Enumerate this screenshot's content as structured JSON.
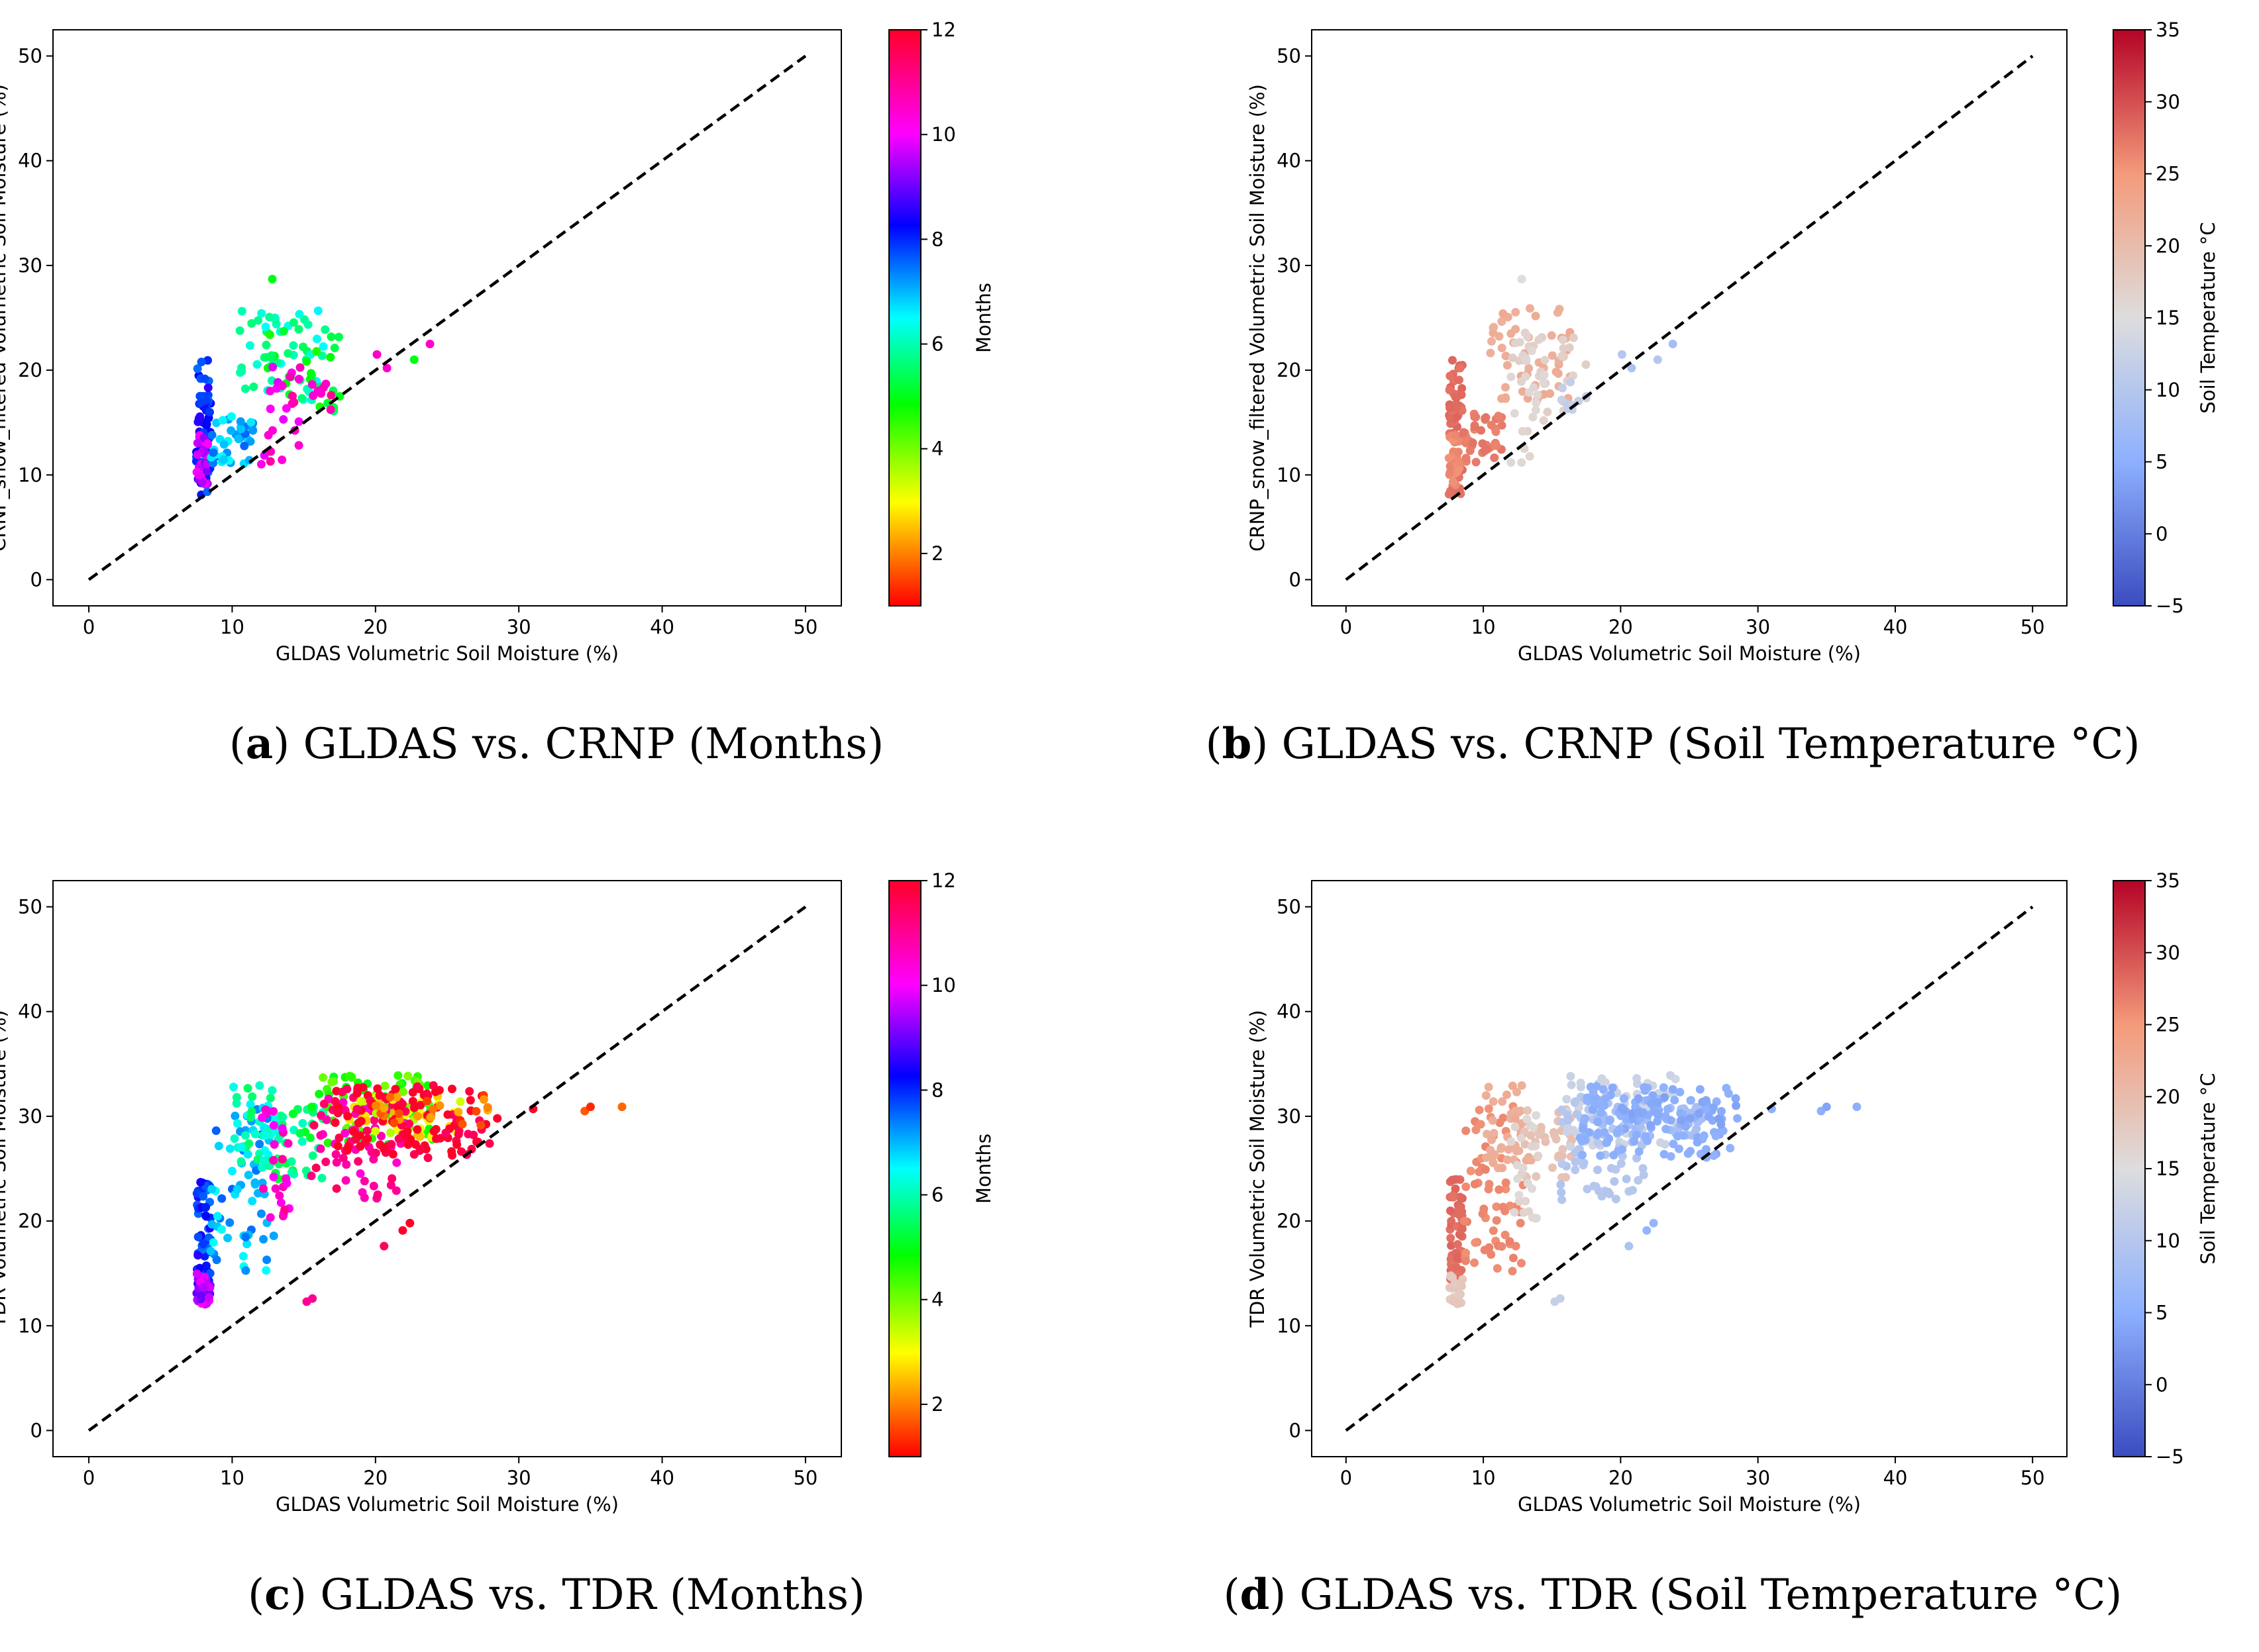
{
  "chart_data": [
    {
      "id": "a",
      "type": "scatter",
      "caption_letter": "a",
      "caption_text": "GLDAS vs. CRNP (Months)",
      "xlabel": "GLDAS Volumetric Soil Moisture (%)",
      "ylabel": "CRNP_snow_filtered Volumetric Soil Moisture (%)",
      "xlim": [
        -2.5,
        52.5
      ],
      "ylim": [
        -2.5,
        52.5
      ],
      "xticks": [
        0,
        10,
        20,
        30,
        40,
        50
      ],
      "yticks": [
        0,
        10,
        20,
        30,
        40,
        50
      ],
      "reference_line": {
        "style": "dashed",
        "color": "#000000",
        "from": [
          0,
          0
        ],
        "to": [
          50,
          50
        ]
      },
      "colorbar": {
        "label": "Months",
        "min": 1,
        "max": 12,
        "ticks": [
          2,
          4,
          6,
          8,
          10,
          12
        ],
        "colormap": "hsv-months"
      },
      "clusters": [
        {
          "color_value": 8,
          "x": [
            7.5,
            8.5
          ],
          "y": [
            8,
            21
          ],
          "n": 70
        },
        {
          "color_value": 9.7,
          "x": [
            7.5,
            8.3
          ],
          "y": [
            9,
            14
          ],
          "n": 30
        },
        {
          "color_value": 7,
          "x": [
            8.5,
            11.5
          ],
          "y": [
            11,
            16
          ],
          "n": 40
        },
        {
          "color_value": 6,
          "x": [
            10.5,
            16.5
          ],
          "y": [
            17,
            26
          ],
          "n": 55
        },
        {
          "color_value": 5,
          "x": [
            12,
            17.5
          ],
          "y": [
            16,
            24
          ],
          "n": 25
        },
        {
          "color_value": 10.3,
          "x": [
            12,
            15
          ],
          "y": [
            11,
            22
          ],
          "n": 25
        },
        {
          "color_value": 11,
          "x": [
            15.5,
            17
          ],
          "y": [
            16,
            19
          ],
          "n": 8
        }
      ],
      "points": [
        {
          "x": 12.8,
          "y": 28.7,
          "c": 5
        },
        {
          "x": 20.1,
          "y": 21.5,
          "c": 10.5
        },
        {
          "x": 20.8,
          "y": 20.2,
          "c": 10.5
        },
        {
          "x": 22.7,
          "y": 21.0,
          "c": 5
        },
        {
          "x": 23.8,
          "y": 22.5,
          "c": 10.5
        },
        {
          "x": 17.5,
          "y": 17.5,
          "c": 5
        }
      ]
    },
    {
      "id": "b",
      "type": "scatter",
      "caption_letter": "b",
      "caption_text": "GLDAS vs. CRNP (Soil Temperature °C)",
      "xlabel": "GLDAS Volumetric Soil Moisture (%)",
      "ylabel": "CRNP_snow_filtered Volumetric Soil Moisture (%)",
      "xlim": [
        -2.5,
        52.5
      ],
      "ylim": [
        -2.5,
        52.5
      ],
      "xticks": [
        0,
        10,
        20,
        30,
        40,
        50
      ],
      "yticks": [
        0,
        10,
        20,
        30,
        40,
        50
      ],
      "reference_line": {
        "style": "dashed",
        "color": "#000000",
        "from": [
          0,
          0
        ],
        "to": [
          50,
          50
        ]
      },
      "colorbar": {
        "label": "Soil Temperature °C",
        "min": -5,
        "max": 35,
        "ticks": [
          -5,
          0,
          5,
          10,
          15,
          20,
          25,
          30,
          35
        ],
        "colormap": "coolwarm"
      },
      "clusters": [
        {
          "color_value": 28,
          "x": [
            7.5,
            8.5
          ],
          "y": [
            8,
            21
          ],
          "n": 70
        },
        {
          "color_value": 26,
          "x": [
            7.5,
            8.3
          ],
          "y": [
            9,
            14
          ],
          "n": 30
        },
        {
          "color_value": 27,
          "x": [
            8.5,
            11.5
          ],
          "y": [
            11,
            16
          ],
          "n": 40
        },
        {
          "color_value": 22,
          "x": [
            10.5,
            16.5
          ],
          "y": [
            17,
            26
          ],
          "n": 55
        },
        {
          "color_value": 17,
          "x": [
            12,
            17.5
          ],
          "y": [
            16,
            24
          ],
          "n": 25
        },
        {
          "color_value": 16,
          "x": [
            12,
            15
          ],
          "y": [
            11,
            22
          ],
          "n": 25
        },
        {
          "color_value": 12,
          "x": [
            15.5,
            17
          ],
          "y": [
            16,
            19
          ],
          "n": 8
        }
      ],
      "points": [
        {
          "x": 12.8,
          "y": 28.7,
          "c": 15
        },
        {
          "x": 20.1,
          "y": 21.5,
          "c": 10
        },
        {
          "x": 20.8,
          "y": 20.2,
          "c": 9
        },
        {
          "x": 22.7,
          "y": 21.0,
          "c": 10
        },
        {
          "x": 23.8,
          "y": 22.5,
          "c": 8
        },
        {
          "x": 17.5,
          "y": 17.5,
          "c": 12
        }
      ]
    },
    {
      "id": "c",
      "type": "scatter",
      "caption_letter": "c",
      "caption_text": "GLDAS vs. TDR (Months)",
      "xlabel": "GLDAS Volumetric Soil Moisture (%)",
      "ylabel": "TDR Volumetric Soil Moisture (%)",
      "xlim": [
        -2.5,
        52.5
      ],
      "ylim": [
        -2.5,
        52.5
      ],
      "xticks": [
        0,
        10,
        20,
        30,
        40,
        50
      ],
      "yticks": [
        0,
        10,
        20,
        30,
        40,
        50
      ],
      "reference_line": {
        "style": "dashed",
        "color": "#000000",
        "from": [
          0,
          0
        ],
        "to": [
          50,
          50
        ]
      },
      "colorbar": {
        "label": "Months",
        "min": 1,
        "max": 12,
        "ticks": [
          2,
          4,
          6,
          8,
          10,
          12
        ],
        "colormap": "hsv-months"
      },
      "clusters": [
        {
          "color_value": 8,
          "x": [
            7.5,
            8.5
          ],
          "y": [
            14,
            24
          ],
          "n": 60
        },
        {
          "color_value": 9.5,
          "x": [
            7.5,
            8.5
          ],
          "y": [
            12,
            15
          ],
          "n": 25
        },
        {
          "color_value": 7,
          "x": [
            8.5,
            13
          ],
          "y": [
            15,
            31
          ],
          "n": 70
        },
        {
          "color_value": 6,
          "x": [
            10,
            13.5
          ],
          "y": [
            25,
            33
          ],
          "n": 40
        },
        {
          "color_value": 5.5,
          "x": [
            13,
            16.5
          ],
          "y": [
            24,
            31
          ],
          "n": 35
        },
        {
          "color_value": 10.5,
          "x": [
            12,
            14
          ],
          "y": [
            20,
            31
          ],
          "n": 25
        },
        {
          "color_value": 4.5,
          "x": [
            16,
            24
          ],
          "y": [
            27,
            34
          ],
          "n": 80
        },
        {
          "color_value": 11,
          "x": [
            15.5,
            22
          ],
          "y": [
            22,
            32
          ],
          "n": 70
        },
        {
          "color_value": 3,
          "x": [
            18,
            26
          ],
          "y": [
            28,
            32
          ],
          "n": 50
        },
        {
          "color_value": 12,
          "x": [
            17,
            28
          ],
          "y": [
            26,
            33
          ],
          "n": 120
        },
        {
          "color_value": 1.8,
          "x": [
            20,
            28.5
          ],
          "y": [
            29,
            32
          ],
          "n": 25
        }
      ],
      "points": [
        {
          "x": 15.2,
          "y": 12.3,
          "c": 11
        },
        {
          "x": 15.6,
          "y": 12.6,
          "c": 11
        },
        {
          "x": 20.6,
          "y": 17.6,
          "c": 11.5
        },
        {
          "x": 21.9,
          "y": 19.1,
          "c": 12
        },
        {
          "x": 22.4,
          "y": 19.8,
          "c": 12
        },
        {
          "x": 31.0,
          "y": 30.7,
          "c": 12
        },
        {
          "x": 34.6,
          "y": 30.5,
          "c": 1.7
        },
        {
          "x": 35.0,
          "y": 30.9,
          "c": 1.3
        },
        {
          "x": 37.2,
          "y": 30.9,
          "c": 1.8
        },
        {
          "x": 28.5,
          "y": 29.8,
          "c": 12
        }
      ]
    },
    {
      "id": "d",
      "type": "scatter",
      "caption_letter": "d",
      "caption_text": "GLDAS vs. TDR (Soil Temperature °C)",
      "xlabel": "GLDAS Volumetric Soil Moisture (%)",
      "ylabel": "TDR Volumetric Soil Moisture (%)",
      "xlim": [
        -2.5,
        52.5
      ],
      "ylim": [
        -2.5,
        52.5
      ],
      "xticks": [
        0,
        10,
        20,
        30,
        40,
        50
      ],
      "yticks": [
        0,
        10,
        20,
        30,
        40,
        50
      ],
      "reference_line": {
        "style": "dashed",
        "color": "#000000",
        "from": [
          0,
          0
        ],
        "to": [
          50,
          50
        ]
      },
      "colorbar": {
        "label": "Soil Temperature °C",
        "min": -5,
        "max": 35,
        "ticks": [
          -5,
          0,
          5,
          10,
          15,
          20,
          25,
          30,
          35
        ],
        "colormap": "coolwarm"
      },
      "clusters": [
        {
          "color_value": 28,
          "x": [
            7.5,
            8.5
          ],
          "y": [
            14,
            24
          ],
          "n": 60
        },
        {
          "color_value": 18,
          "x": [
            7.5,
            8.5
          ],
          "y": [
            12,
            15
          ],
          "n": 25
        },
        {
          "color_value": 26,
          "x": [
            8.5,
            13
          ],
          "y": [
            15,
            31
          ],
          "n": 70
        },
        {
          "color_value": 22,
          "x": [
            10,
            13.5
          ],
          "y": [
            25,
            33
          ],
          "n": 40
        },
        {
          "color_value": 19,
          "x": [
            13,
            16.5
          ],
          "y": [
            24,
            31
          ],
          "n": 35
        },
        {
          "color_value": 16,
          "x": [
            12,
            14
          ],
          "y": [
            20,
            31
          ],
          "n": 25
        },
        {
          "color_value": 13,
          "x": [
            16,
            24
          ],
          "y": [
            27,
            34
          ],
          "n": 80
        },
        {
          "color_value": 10,
          "x": [
            15.5,
            22
          ],
          "y": [
            22,
            32
          ],
          "n": 70
        },
        {
          "color_value": 8,
          "x": [
            18,
            26
          ],
          "y": [
            28,
            32
          ],
          "n": 50
        },
        {
          "color_value": 5,
          "x": [
            17,
            28
          ],
          "y": [
            26,
            33
          ],
          "n": 120
        },
        {
          "color_value": 4,
          "x": [
            20,
            28.5
          ],
          "y": [
            29,
            32
          ],
          "n": 25
        }
      ],
      "points": [
        {
          "x": 15.2,
          "y": 12.3,
          "c": 12
        },
        {
          "x": 15.6,
          "y": 12.6,
          "c": 12
        },
        {
          "x": 20.6,
          "y": 17.6,
          "c": 9
        },
        {
          "x": 21.9,
          "y": 19.1,
          "c": 6
        },
        {
          "x": 22.4,
          "y": 19.8,
          "c": 6
        },
        {
          "x": 31.0,
          "y": 30.7,
          "c": 5
        },
        {
          "x": 34.6,
          "y": 30.5,
          "c": 5
        },
        {
          "x": 35.0,
          "y": 30.9,
          "c": 4
        },
        {
          "x": 37.2,
          "y": 30.9,
          "c": 5
        },
        {
          "x": 28.5,
          "y": 29.8,
          "c": 5
        }
      ]
    }
  ]
}
